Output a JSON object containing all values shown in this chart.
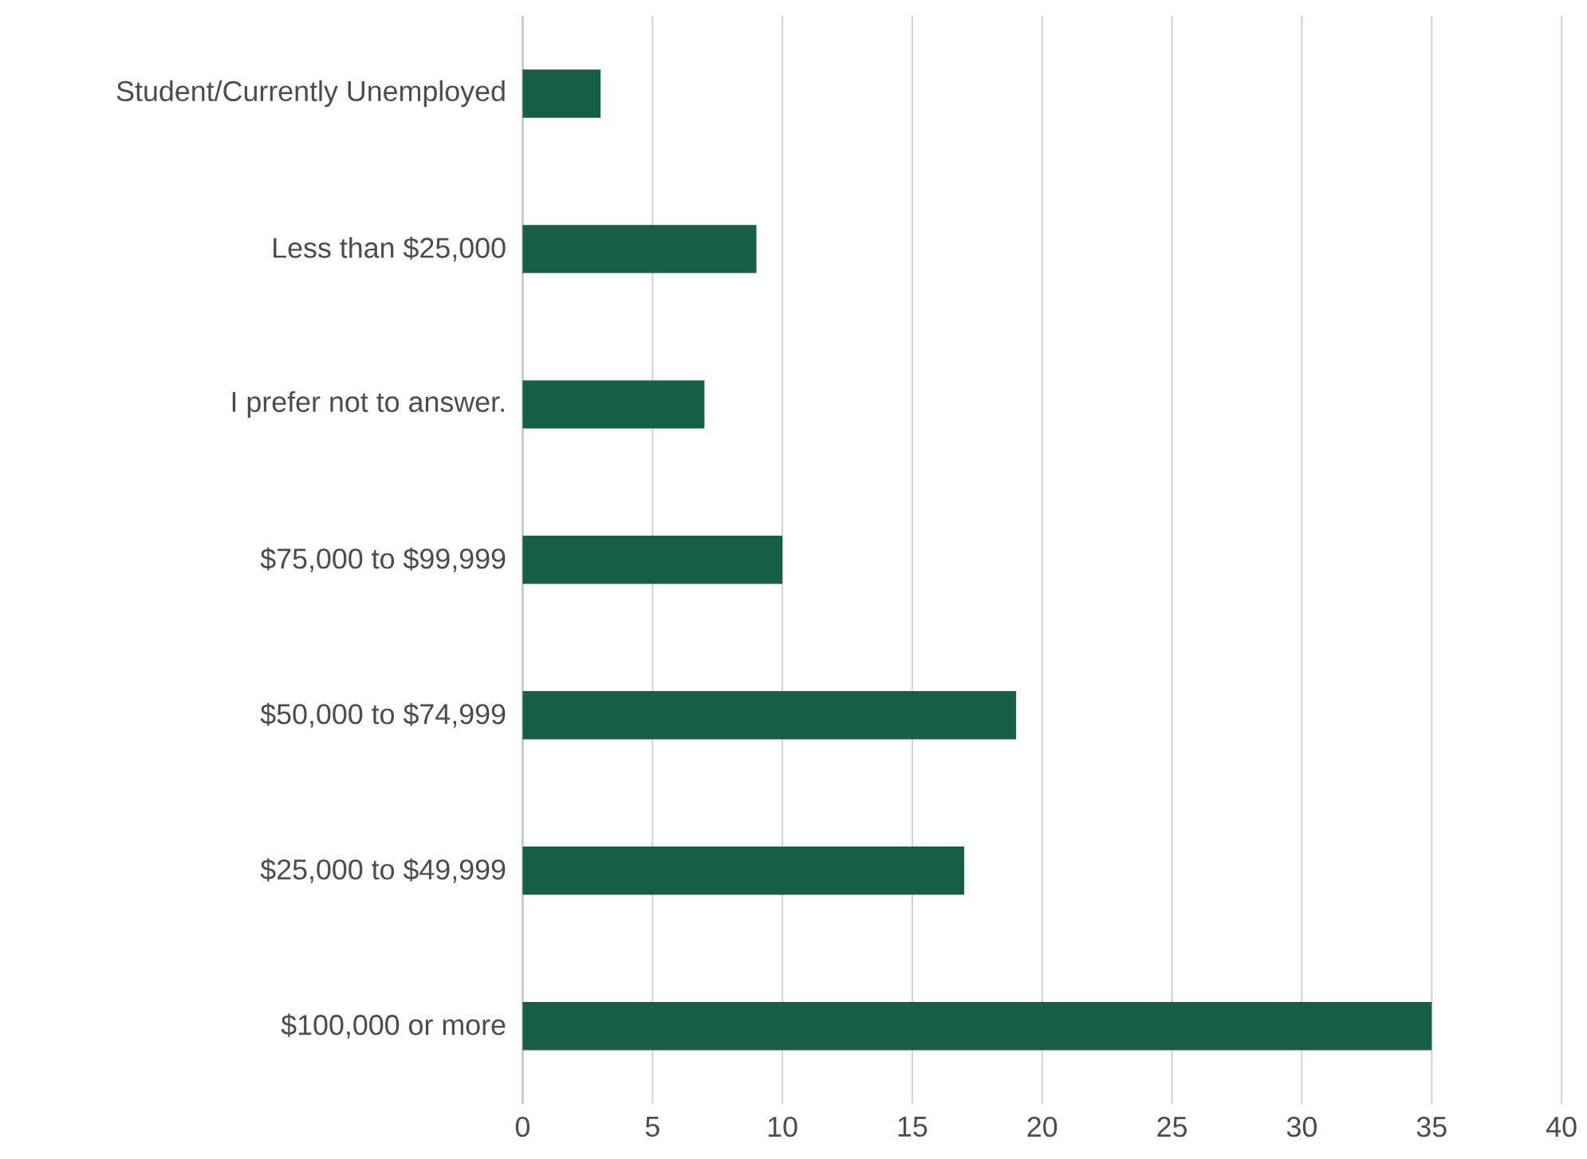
{
  "chart_data": {
    "type": "bar",
    "orientation": "horizontal",
    "categories": [
      "Student/Currently Unemployed",
      "Less than $25,000",
      "I prefer not to answer.",
      "$75,000 to $99,999",
      "$50,000 to $74,999",
      "$25,000 to $49,999",
      "$100,000 or more"
    ],
    "values": [
      3,
      9,
      7,
      10,
      19,
      17,
      35
    ],
    "color": "#165e44",
    "xlim": [
      0,
      40
    ],
    "xticks": [
      0,
      5,
      10,
      15,
      20,
      25,
      30,
      35,
      40
    ],
    "grid": "x"
  }
}
